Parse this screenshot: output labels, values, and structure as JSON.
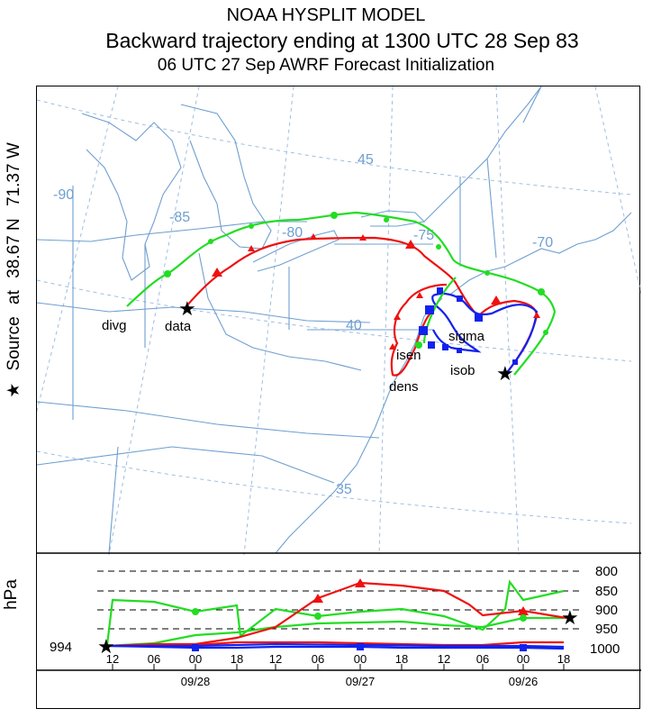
{
  "header": {
    "line1": "NOAA HYSPLIT MODEL",
    "line2": "Backward trajectory ending at 1300 UTC 28 Sep 83",
    "line3": "06 UTC 27 Sep     AWRF  Forecast Initialization"
  },
  "side_label": {
    "star": "★",
    "source": "Source",
    "at": "at",
    "lat": "38.67 N",
    "lon": "71.37 W"
  },
  "map": {
    "graticule_labels": [
      "-90",
      "-85",
      "-80",
      "-75",
      "-70",
      "45",
      "40",
      "35"
    ],
    "trajectory_labels": [
      "divg",
      "data",
      "sigma",
      "isen",
      "isob",
      "dens"
    ],
    "colors": {
      "red": "#ee1111",
      "green": "#22dd22",
      "blue": "#1122ee",
      "grid": "#9fbde0",
      "coast": "#6f9fd0"
    }
  },
  "profile": {
    "axis_title": "hPa",
    "start_value": "994",
    "pressure_levels": [
      "800",
      "850",
      "900",
      "950",
      "1000"
    ],
    "time_ticks": [
      "12",
      "06",
      "00",
      "18",
      "12",
      "06",
      "00",
      "18",
      "12",
      "06",
      "00",
      "18"
    ],
    "date_labels": [
      "09/28",
      "09/27",
      "09/26"
    ]
  }
}
